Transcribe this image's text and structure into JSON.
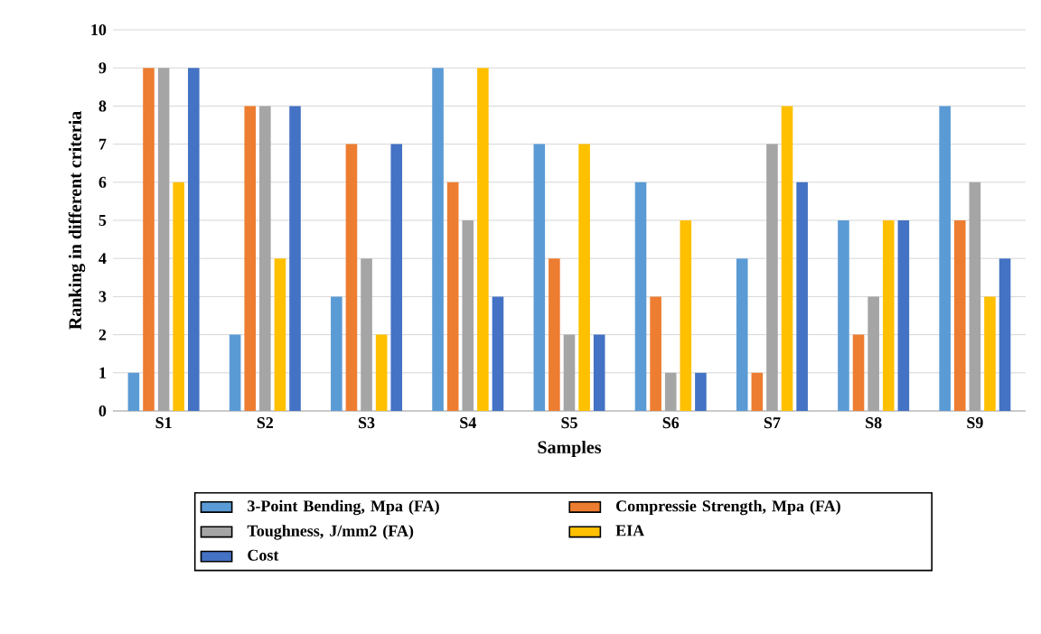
{
  "chart_data": {
    "type": "bar",
    "xlabel": "Samples",
    "ylabel": "Ranking in different criteria",
    "categories": [
      "S1",
      "S2",
      "S3",
      "S4",
      "S5",
      "S6",
      "S7",
      "S8",
      "S9"
    ],
    "series": [
      {
        "name": "3-Point Bending, Mpa (FA)",
        "color": "#5b9bd5",
        "values": [
          1,
          2,
          3,
          9,
          7,
          6,
          4,
          5,
          8
        ]
      },
      {
        "name": "Compressie Strength, Mpa (FA)",
        "color": "#ed7d31",
        "values": [
          9,
          8,
          7,
          6,
          4,
          3,
          1,
          2,
          5
        ]
      },
      {
        "name": "Toughness, J/mm2 (FA)",
        "color": "#a5a5a5",
        "values": [
          9,
          8,
          4,
          5,
          2,
          1,
          7,
          3,
          6
        ]
      },
      {
        "name": "EIA",
        "color": "#ffc000",
        "values": [
          6,
          4,
          2,
          9,
          7,
          5,
          8,
          5,
          3
        ]
      },
      {
        "name": "Cost",
        "color": "#4472c4",
        "values": [
          9,
          8,
          7,
          3,
          2,
          1,
          6,
          5,
          4
        ]
      }
    ],
    "ylim": [
      0,
      10
    ],
    "yticks": [
      0,
      1,
      2,
      3,
      4,
      5,
      6,
      7,
      8,
      9,
      10
    ],
    "grid": "y",
    "legend": "bottom"
  }
}
